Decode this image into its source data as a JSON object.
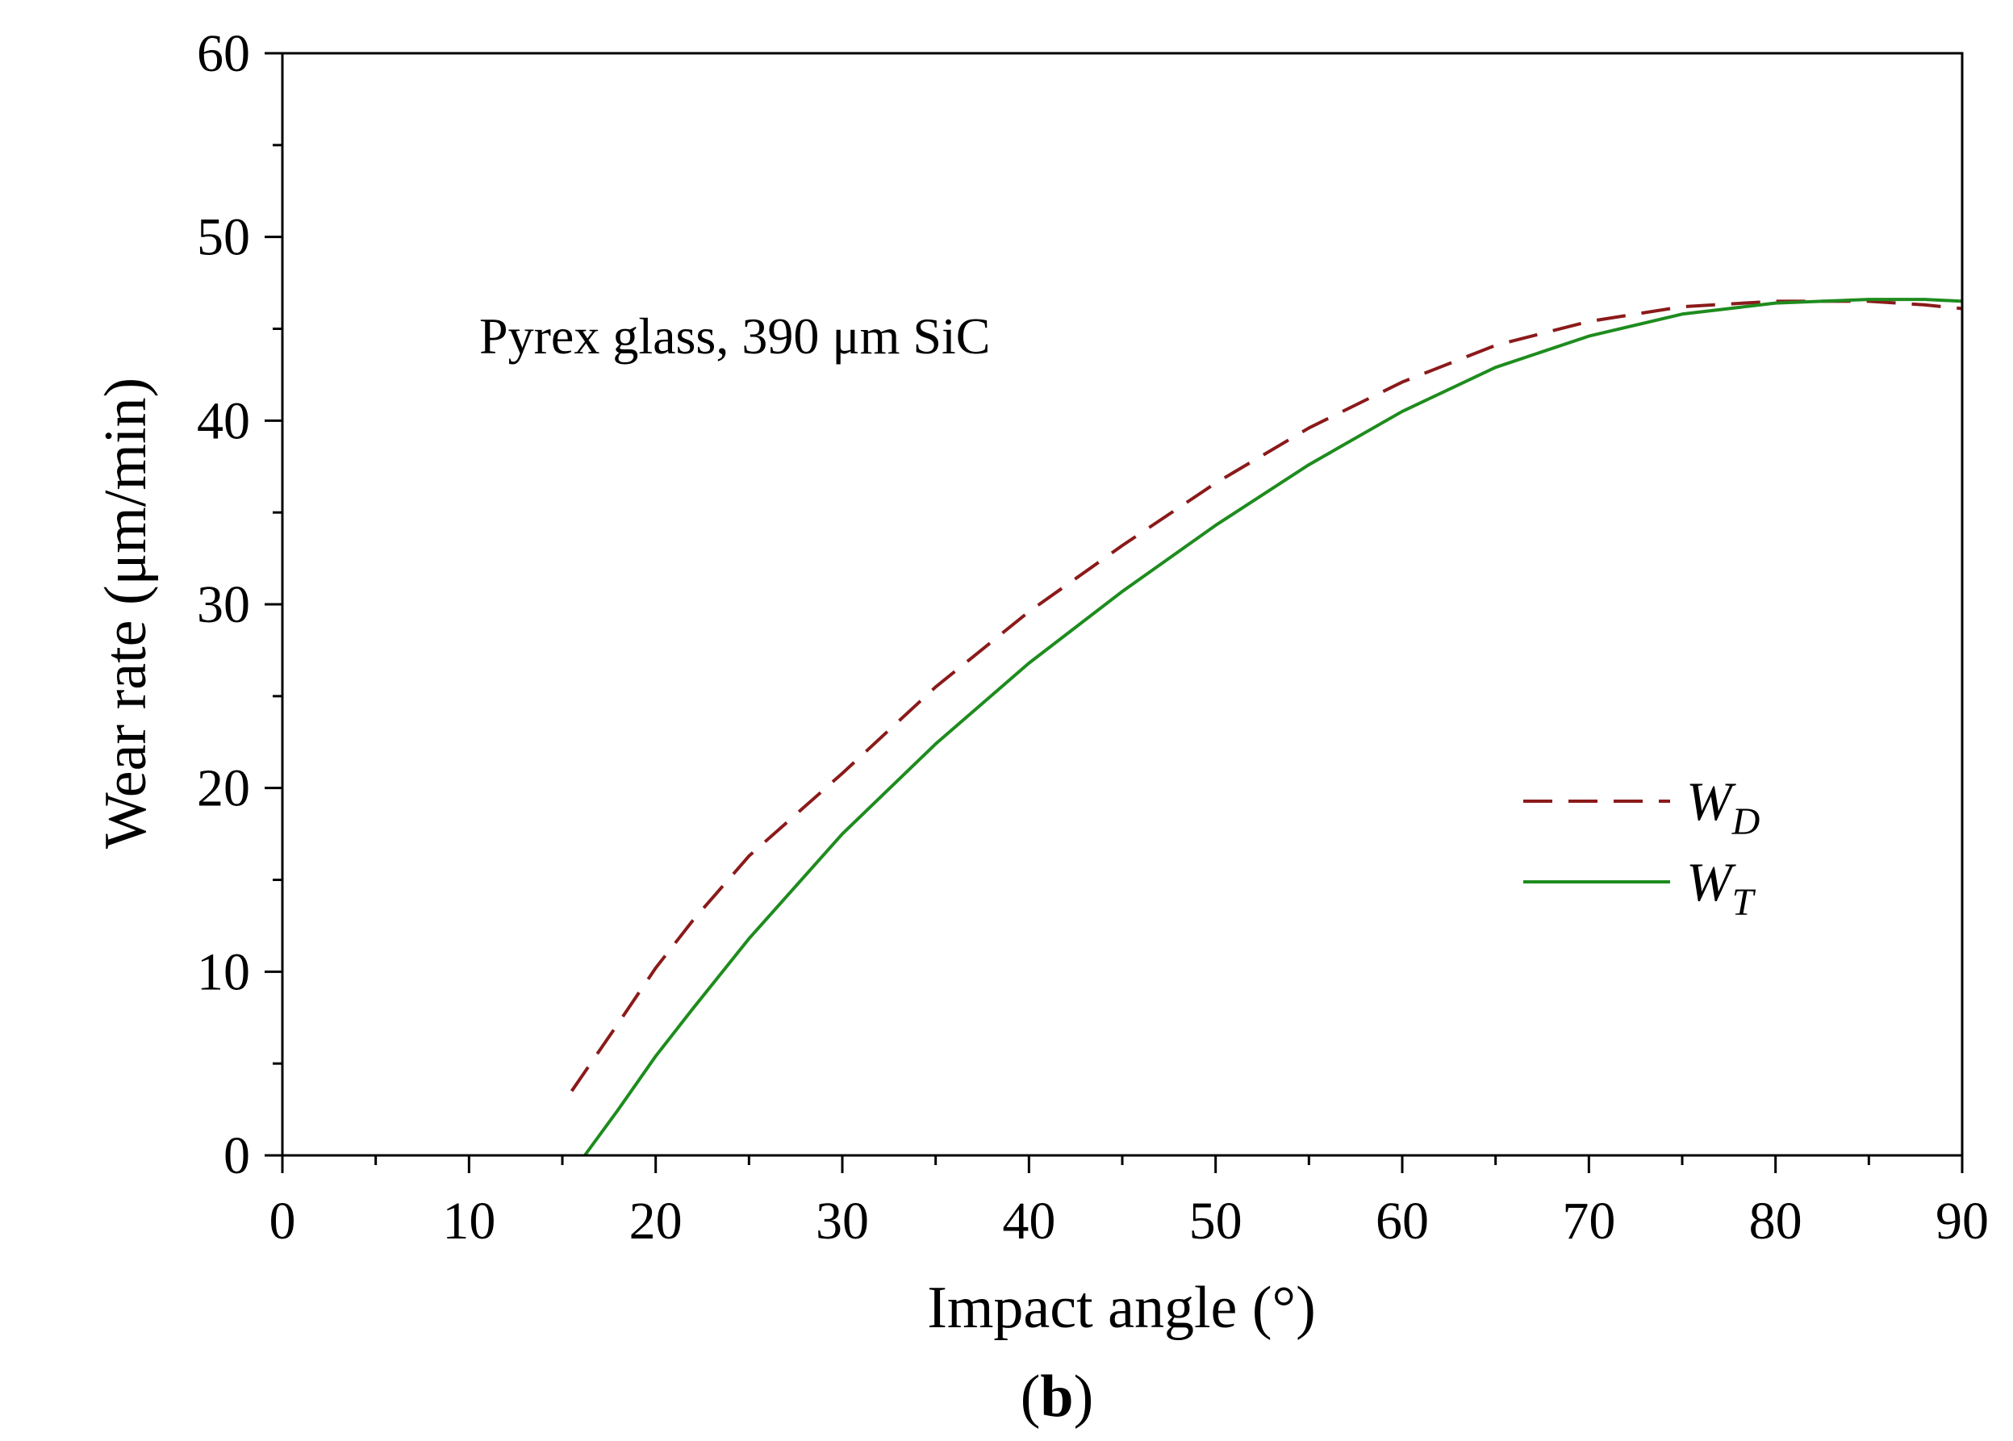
{
  "chart_data": {
    "type": "line",
    "title": "",
    "annotation": "Pyrex glass, 390 μm SiC",
    "xlabel": "Impact angle (°)",
    "ylabel": "Wear rate (μm/min)",
    "xlim": [
      0,
      90
    ],
    "ylim": [
      0,
      60
    ],
    "x_ticks": [
      0,
      10,
      20,
      30,
      40,
      50,
      60,
      70,
      80,
      90
    ],
    "y_ticks": [
      0,
      10,
      20,
      30,
      40,
      50,
      60
    ],
    "grid": false,
    "legend_position": "right",
    "panel_label": "b",
    "series": [
      {
        "name": "W",
        "subscript": "D",
        "color": "#8B1A1A",
        "dash": true,
        "x": [
          15.5,
          18,
          20,
          22,
          25,
          30,
          35,
          40,
          45,
          50,
          55,
          60,
          65,
          70,
          75,
          80,
          85,
          88,
          90
        ],
        "y": [
          3.5,
          7.2,
          10.2,
          12.8,
          16.3,
          20.8,
          25.5,
          29.6,
          33.2,
          36.6,
          39.6,
          42.1,
          44.1,
          45.4,
          46.2,
          46.5,
          46.5,
          46.3,
          46.1
        ]
      },
      {
        "name": "W",
        "subscript": "T",
        "color": "#1E8C1E",
        "dash": false,
        "x": [
          16.2,
          18,
          20,
          22,
          25,
          30,
          35,
          40,
          45,
          50,
          55,
          60,
          65,
          70,
          75,
          80,
          85,
          88,
          90
        ],
        "y": [
          0,
          2.5,
          5.4,
          8.0,
          11.8,
          17.5,
          22.4,
          26.8,
          30.7,
          34.3,
          37.6,
          40.5,
          42.9,
          44.6,
          45.8,
          46.4,
          46.6,
          46.6,
          46.5
        ]
      }
    ]
  }
}
